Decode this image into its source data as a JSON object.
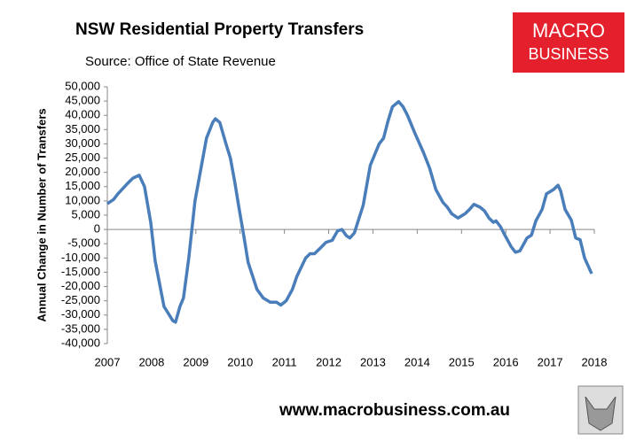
{
  "chart_data": {
    "type": "line",
    "title": "NSW Residential Property Transfers",
    "subtitle": "Source: Office of State Revenue",
    "y_label": "Annual Change in Number of Transfers",
    "xlim": [
      2007,
      2018
    ],
    "xticks": [
      2007,
      2008,
      2009,
      2010,
      2011,
      2012,
      2013,
      2014,
      2015,
      2016,
      2017,
      2018
    ],
    "ylim": [
      -40000,
      50000
    ],
    "yticks": [
      {
        "value": 50000,
        "label": "50,000"
      },
      {
        "value": 45000,
        "label": "45,000"
      },
      {
        "value": 40000,
        "label": "40,000"
      },
      {
        "value": 35000,
        "label": "35,000"
      },
      {
        "value": 30000,
        "label": "30,000"
      },
      {
        "value": 25000,
        "label": "25,000"
      },
      {
        "value": 20000,
        "label": "20,000"
      },
      {
        "value": 15000,
        "label": "15,000"
      },
      {
        "value": 10000,
        "label": "10,000"
      },
      {
        "value": 5000,
        "label": "5,000"
      },
      0,
      {
        "value": -5000,
        "label": "-5,000"
      },
      {
        "value": -10000,
        "label": "-10,000"
      },
      {
        "value": -15000,
        "label": "-15,000"
      },
      {
        "value": -20000,
        "label": "-20,000"
      },
      {
        "value": -25000,
        "label": "-25,000"
      },
      {
        "value": -30000,
        "label": "-30,000"
      },
      {
        "value": -35000,
        "label": "-35,000"
      },
      {
        "value": -40000,
        "label": "-40,000"
      }
    ],
    "grid": false,
    "x": [
      2007.0,
      2007.14,
      2007.24,
      2007.48,
      2007.58,
      2007.72,
      2007.84,
      2007.98,
      2008.08,
      2008.28,
      2008.48,
      2008.54,
      2008.64,
      2008.72,
      2008.84,
      2008.98,
      2009.24,
      2009.38,
      2009.44,
      2009.54,
      2009.68,
      2009.78,
      2009.88,
      2009.98,
      2010.08,
      2010.18,
      2010.38,
      2010.52,
      2010.68,
      2010.82,
      2010.92,
      2011.04,
      2011.18,
      2011.28,
      2011.48,
      2011.58,
      2011.68,
      2011.78,
      2011.94,
      2012.08,
      2012.2,
      2012.3,
      2012.4,
      2012.48,
      2012.58,
      2012.78,
      2012.94,
      2013.14,
      2013.24,
      2013.34,
      2013.44,
      2013.58,
      2013.68,
      2013.78,
      2013.94,
      2014.14,
      2014.28,
      2014.42,
      2014.58,
      2014.68,
      2014.78,
      2014.92,
      2015.08,
      2015.18,
      2015.28,
      2015.42,
      2015.52,
      2015.62,
      2015.72,
      2015.78,
      2015.88,
      2015.98,
      2016.12,
      2016.22,
      2016.32,
      2016.48,
      2016.58,
      2016.68,
      2016.82,
      2016.92,
      2017.08,
      2017.18,
      2017.24,
      2017.34,
      2017.48,
      2017.58,
      2017.68,
      2017.78,
      2017.94
    ],
    "series": [
      {
        "name": "Annual Change",
        "color": "#4a7ebb",
        "values": [
          9000,
          10500,
          12500,
          16500,
          18000,
          19000,
          15000,
          2500,
          -11000,
          -27000,
          -32000,
          -32500,
          -27000,
          -24000,
          -10000,
          10000,
          32000,
          37500,
          38800,
          37500,
          30000,
          25000,
          16500,
          7000,
          -2000,
          -11500,
          -21000,
          -24000,
          -25500,
          -25500,
          -26500,
          -25000,
          -21000,
          -16500,
          -10000,
          -8500,
          -8500,
          -7000,
          -4500,
          -3800,
          -500,
          0,
          -2200,
          -3000,
          -1200,
          8500,
          22500,
          30000,
          32000,
          38000,
          43000,
          44800,
          43000,
          40000,
          34000,
          27000,
          21500,
          14000,
          9500,
          7800,
          5500,
          4000,
          5500,
          7000,
          8800,
          7800,
          6500,
          4000,
          2500,
          3000,
          1000,
          -2000,
          -6000,
          -8000,
          -7500,
          -3000,
          -2000,
          3000,
          7000,
          12500,
          14000,
          15500,
          13500,
          7000,
          3300,
          -3000,
          -3600,
          -10000,
          -15500
        ]
      }
    ]
  },
  "logo": {
    "line1": "MACRO",
    "line2": "BUSINESS"
  },
  "footer_url": "www.macrobusiness.com.au"
}
